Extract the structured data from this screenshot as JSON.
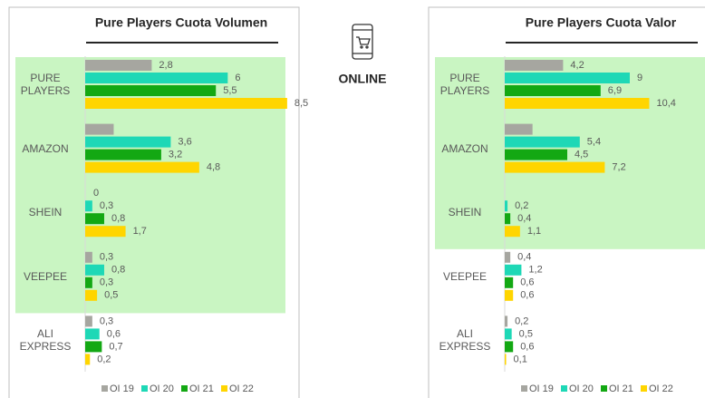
{
  "center_label": "ONLINE",
  "chart_data": [
    {
      "type": "bar",
      "orientation": "horizontal",
      "title": "Pure Players Cuota Volumen",
      "categories": [
        "PURE PLAYERS",
        "AMAZON",
        "SHEIN",
        "VEEPEE",
        "ALI EXPRESS"
      ],
      "xlim": [
        0,
        9
      ],
      "highlight_count": 4,
      "highlight_color": "#c9f5c2",
      "series": [
        {
          "name": "OI 19",
          "color": "#a6a6a0",
          "values": [
            2.8,
            1.2,
            0,
            0.3,
            0.3
          ],
          "value_labels": [
            "2,8",
            null,
            "0",
            "0,3",
            "0,3"
          ]
        },
        {
          "name": "OI 20",
          "color": "#1ed8b6",
          "values": [
            6,
            3.6,
            0.3,
            0.8,
            0.6
          ],
          "value_labels": [
            "6",
            "3,6",
            "0,3",
            "0,8",
            "0,6"
          ]
        },
        {
          "name": "OI 21",
          "color": "#13a813",
          "values": [
            5.5,
            3.2,
            0.8,
            0.3,
            0.7
          ],
          "value_labels": [
            "5,5",
            "3,2",
            "0,8",
            "0,3",
            "0,7"
          ]
        },
        {
          "name": "OI 22",
          "color": "#ffd500",
          "values": [
            8.5,
            4.8,
            1.7,
            0.5,
            0.2
          ],
          "value_labels": [
            "8,5",
            "4,8",
            "1,7",
            "0,5",
            "0,2"
          ]
        }
      ]
    },
    {
      "type": "bar",
      "orientation": "horizontal",
      "title": "Pure Players Cuota Valor",
      "categories": [
        "PURE PLAYERS",
        "AMAZON",
        "SHEIN",
        "VEEPEE",
        "ALI EXPRESS"
      ],
      "xlim": [
        0,
        12
      ],
      "highlight_count": 3,
      "highlight_color": "#c9f5c2",
      "series": [
        {
          "name": "OI 19",
          "color": "#a6a6a0",
          "values": [
            4.2,
            2.0,
            null,
            0.4,
            0.2
          ],
          "value_labels": [
            "4,2",
            null,
            null,
            "0,4",
            "0,2"
          ]
        },
        {
          "name": "OI 20",
          "color": "#1ed8b6",
          "values": [
            9,
            5.4,
            0.2,
            1.2,
            0.5
          ],
          "value_labels": [
            "9",
            "5,4",
            "0,2",
            "1,2",
            "0,5"
          ]
        },
        {
          "name": "OI 21",
          "color": "#13a813",
          "values": [
            6.9,
            4.5,
            0.4,
            0.6,
            0.6
          ],
          "value_labels": [
            "6,9",
            "4,5",
            "0,4",
            "0,6",
            "0,6"
          ]
        },
        {
          "name": "OI 22",
          "color": "#ffd500",
          "values": [
            10.4,
            7.2,
            1.1,
            0.6,
            0.1
          ],
          "value_labels": [
            "10,4",
            "7,2",
            "1,1",
            "0,6",
            "0,1"
          ]
        }
      ]
    }
  ]
}
